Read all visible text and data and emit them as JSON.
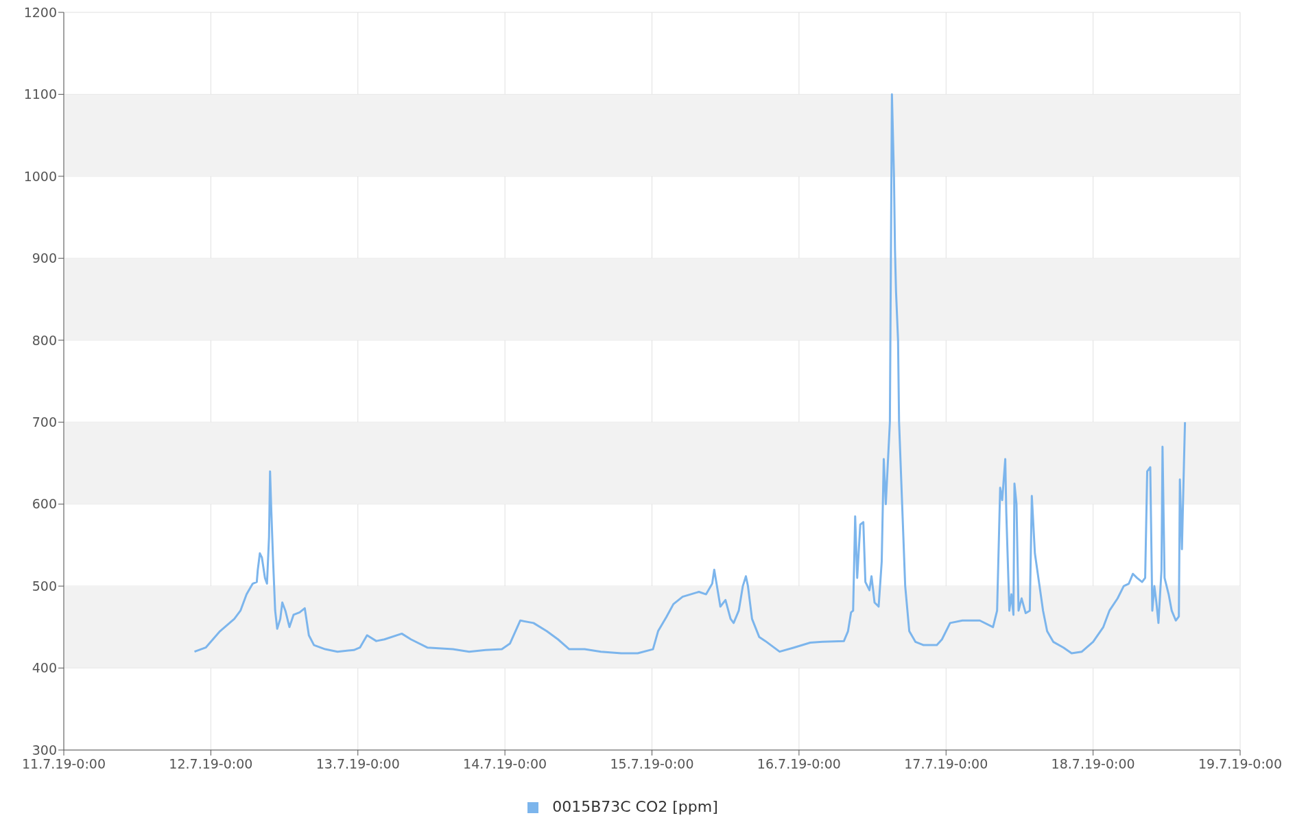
{
  "chart_data": {
    "type": "line",
    "x": [
      "--07-11T21:20",
      "--07-11T23:10",
      "--07-12T01:30",
      "--07-12T03:50",
      "--07-12T04:50",
      "--07-12T05:50",
      "--07-12T06:50",
      "--07-12T07:30",
      "--07-12T07:40",
      "--07-12T08:00",
      "--07-12T08:20",
      "--07-12T08:50",
      "--07-12T09:10",
      "--07-12T09:30",
      "--07-12T09:40",
      "--07-12T09:50",
      "--07-12T10:10",
      "--07-12T10:30",
      "--07-12T10:50",
      "--07-12T11:20",
      "--07-12T11:40",
      "--07-12T12:10",
      "--07-12T12:50",
      "--07-12T13:30",
      "--07-12T14:30",
      "--07-12T15:20",
      "--07-12T16:00",
      "--07-12T16:50",
      "--07-12T18:40",
      "--07-12T20:40",
      "--07-12T23:20",
      "--07-13T00:20",
      "--07-13T01:30",
      "--07-13T03:00",
      "--07-13T04:20",
      "--07-13T07:10",
      "--07-13T08:40",
      "--07-13T11:20",
      "--07-13T15:30",
      "--07-13T18:10",
      "--07-13T20:50",
      "--07-13T23:30",
      "--07-14T00:50",
      "--07-14T02:30",
      "--07-14T04:40",
      "--07-14T06:50",
      "--07-14T08:40",
      "--07-14T10:30",
      "--07-14T13:00",
      "--07-14T15:40",
      "--07-14T19:00",
      "--07-14T21:40",
      "--07-15T00:10",
      "--07-15T01:00",
      "--07-15T02:20",
      "--07-15T03:30",
      "--07-15T05:00",
      "--07-15T07:40",
      "--07-15T08:50",
      "--07-15T09:50",
      "--07-15T10:10",
      "--07-15T10:30",
      "--07-15T11:10",
      "--07-15T12:00",
      "--07-15T12:50",
      "--07-15T13:20",
      "--07-15T14:10",
      "--07-15T14:50",
      "--07-15T15:20",
      "--07-15T15:40",
      "--07-15T16:20",
      "--07-15T17:30",
      "--07-15T18:30",
      "--07-15T20:50",
      "--07-15T23:10",
      "--07-16T01:50",
      "--07-16T03:50",
      "--07-16T07:20",
      "--07-16T08:00",
      "--07-16T08:30",
      "--07-16T08:50",
      "--07-16T09:10",
      "--07-16T09:30",
      "--07-16T10:00",
      "--07-16T10:30",
      "--07-16T10:50",
      "--07-16T11:30",
      "--07-16T11:50",
      "--07-16T12:20",
      "--07-16T13:00",
      "--07-16T13:30",
      "--07-16T13:50",
      "--07-16T14:10",
      "--07-16T14:30",
      "--07-16T14:50",
      "--07-16T15:10",
      "--07-16T15:30",
      "--07-16T15:40",
      "--07-16T15:50",
      "--07-16T16:10",
      "--07-16T16:20",
      "--07-16T16:50",
      "--07-16T17:20",
      "--07-16T18:00",
      "--07-16T19:00",
      "--07-16T20:20",
      "--07-16T22:30",
      "--07-16T23:20",
      "--07-17T00:40",
      "--07-17T02:40",
      "--07-17T05:30",
      "--07-17T07:40",
      "--07-17T08:20",
      "--07-17T08:50",
      "--07-17T09:10",
      "--07-17T09:40",
      "--07-17T09:50",
      "--07-17T10:20",
      "--07-17T10:40",
      "--07-17T11:00",
      "--07-17T11:10",
      "--07-17T11:30",
      "--07-17T11:50",
      "--07-17T12:20",
      "--07-17T13:00",
      "--07-17T13:40",
      "--07-17T14:00",
      "--07-17T14:30",
      "--07-17T15:10",
      "--07-17T15:50",
      "--07-17T16:30",
      "--07-17T17:30",
      "--07-17T19:10",
      "--07-17T20:30",
      "--07-17T22:10",
      "--07-18T00:00",
      "--07-18T01:40",
      "--07-18T02:40",
      "--07-18T04:00",
      "--07-18T05:00",
      "--07-18T05:50",
      "--07-18T06:30",
      "--07-18T07:10",
      "--07-18T08:00",
      "--07-18T08:30",
      "--07-18T08:50",
      "--07-18T09:20",
      "--07-18T09:40",
      "--07-18T10:00",
      "--07-18T10:20",
      "--07-18T10:40",
      "--07-18T11:10",
      "--07-18T11:20",
      "--07-18T11:40",
      "--07-18T12:20",
      "--07-18T12:50",
      "--07-18T13:30",
      "--07-18T14:00",
      "--07-18T14:10",
      "--07-18T14:30",
      "--07-18T14:50",
      "--07-18T15:00"
    ],
    "series": [
      {
        "name": "0015B73C CO2 [ppm]",
        "color": "#7cb5ec",
        "values": [
          420,
          425,
          445,
          460,
          470,
          490,
          503,
          505,
          520,
          540,
          535,
          510,
          503,
          560,
          640,
          600,
          530,
          470,
          448,
          460,
          480,
          470,
          450,
          465,
          468,
          473,
          440,
          428,
          423,
          420,
          422,
          425,
          440,
          433,
          435,
          442,
          435,
          425,
          423,
          420,
          422,
          423,
          430,
          458,
          455,
          445,
          435,
          423,
          423,
          420,
          418,
          418,
          423,
          445,
          462,
          478,
          487,
          493,
          490,
          503,
          520,
          505,
          475,
          483,
          460,
          455,
          470,
          500,
          512,
          500,
          460,
          438,
          433,
          420,
          425,
          431,
          432,
          433,
          445,
          468,
          470,
          585,
          510,
          575,
          578,
          505,
          495,
          512,
          480,
          475,
          530,
          655,
          600,
          650,
          700,
          1100,
          1000,
          910,
          860,
          800,
          700,
          600,
          500,
          445,
          432,
          428,
          428,
          435,
          455,
          458,
          458,
          450,
          470,
          620,
          605,
          655,
          590,
          470,
          490,
          465,
          625,
          600,
          470,
          485,
          467,
          470,
          610,
          540,
          505,
          470,
          445,
          432,
          425,
          418,
          420,
          432,
          450,
          470,
          485,
          500,
          503,
          515,
          510,
          505,
          510,
          640,
          645,
          470,
          500,
          480,
          455,
          520,
          670,
          510,
          490,
          470,
          458,
          463,
          630,
          545,
          650,
          700
        ]
      }
    ],
    "xlim": [
      "--07-11T00:00",
      "--07-19T00:00"
    ],
    "xticks": [
      {
        "value": "--07-11T00:00",
        "label": "11.7.19-0:00"
      },
      {
        "value": "--07-12T00:00",
        "label": "12.7.19-0:00"
      },
      {
        "value": "--07-13T00:00",
        "label": "13.7.19-0:00"
      },
      {
        "value": "--07-14T00:00",
        "label": "14.7.19-0:00"
      },
      {
        "value": "--07-15T00:00",
        "label": "15.7.19-0:00"
      },
      {
        "value": "--07-16T00:00",
        "label": "16.7.19-0:00"
      },
      {
        "value": "--07-17T00:00",
        "label": "17.7.19-0:00"
      },
      {
        "value": "--07-18T00:00",
        "label": "18.7.19-0:00"
      },
      {
        "value": "--07-19T00:00",
        "label": "19.7.19-0:00"
      }
    ],
    "ylim": [
      300,
      1200
    ],
    "yticks": [
      300,
      400,
      500,
      600,
      700,
      800,
      900,
      1000,
      1100,
      1200
    ],
    "bands": [
      {
        "axis": "y",
        "from": 400,
        "to": 500,
        "color": "#f2f2f2"
      },
      {
        "axis": "y",
        "from": 600,
        "to": 700,
        "color": "#f2f2f2"
      },
      {
        "axis": "y",
        "from": 800,
        "to": 900,
        "color": "#f2f2f2"
      },
      {
        "axis": "y",
        "from": 1000,
        "to": 1100,
        "color": "#f2f2f2"
      }
    ],
    "grid": true,
    "legend": "bottom"
  }
}
